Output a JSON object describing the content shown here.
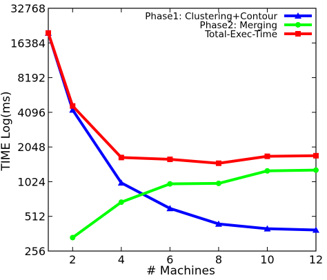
{
  "chart_data": {
    "type": "line",
    "title": "",
    "xlabel": "# Machines",
    "ylabel": "TIME Log(ms)",
    "y_scale": "log2",
    "xlim": [
      1,
      12
    ],
    "ylim": [
      256,
      32768
    ],
    "x_ticks": [
      2,
      4,
      6,
      8,
      10,
      12
    ],
    "y_ticks": [
      256,
      512,
      1024,
      2048,
      4096,
      8192,
      16384,
      32768
    ],
    "grid": false,
    "legend_position": "top-right",
    "series": [
      {
        "name": "Phase1: Clustering+Contour",
        "color": "#0000ff",
        "marker": "triangle",
        "x": [
          1,
          2,
          4,
          6,
          8,
          10,
          12
        ],
        "y": [
          20000,
          4300,
          1000,
          600,
          440,
          400,
          390
        ]
      },
      {
        "name": "Phase2: Merging",
        "color": "#00ff00",
        "marker": "circle",
        "x": [
          2,
          4,
          6,
          8,
          10,
          12
        ],
        "y": [
          335,
          680,
          980,
          990,
          1270,
          1290
        ]
      },
      {
        "name": "Total-Exec-Time",
        "color": "#ff0000",
        "marker": "square",
        "x": [
          1,
          2,
          4,
          6,
          8,
          10,
          12
        ],
        "y": [
          20000,
          4650,
          1660,
          1600,
          1480,
          1700,
          1720
        ]
      }
    ]
  }
}
